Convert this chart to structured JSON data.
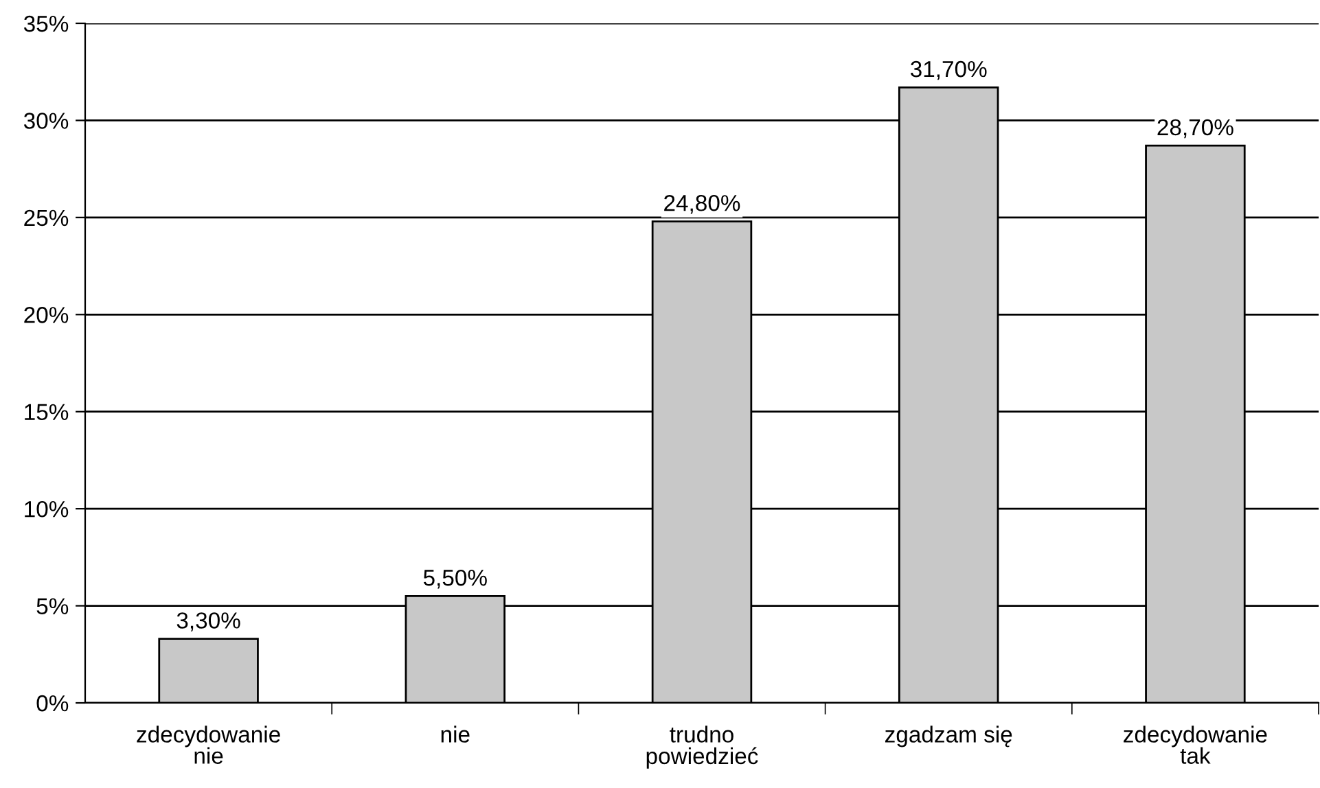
{
  "chart_data": {
    "type": "bar",
    "categories": [
      "zdecydowanie\nnie",
      "nie",
      "trudno\npowiedzieć",
      "zgadzam się",
      "zdecydowanie\ntak"
    ],
    "values": [
      3.3,
      5.5,
      24.8,
      31.7,
      28.7
    ],
    "value_labels": [
      "3,30%",
      "5,50%",
      "24,80%",
      "31,70%",
      "28,70%"
    ],
    "color": "#c8c8c8",
    "ylim": [
      0,
      35
    ],
    "yticks": [
      {
        "value": 0,
        "label": "0%"
      },
      {
        "value": 5,
        "label": "5%"
      },
      {
        "value": 10,
        "label": "10%"
      },
      {
        "value": 15,
        "label": "15%"
      },
      {
        "value": 20,
        "label": "20%"
      },
      {
        "value": 25,
        "label": "25%"
      },
      {
        "value": 30,
        "label": "30%"
      },
      {
        "value": 35,
        "label": "35%"
      }
    ],
    "grid": "y",
    "legend": false
  }
}
